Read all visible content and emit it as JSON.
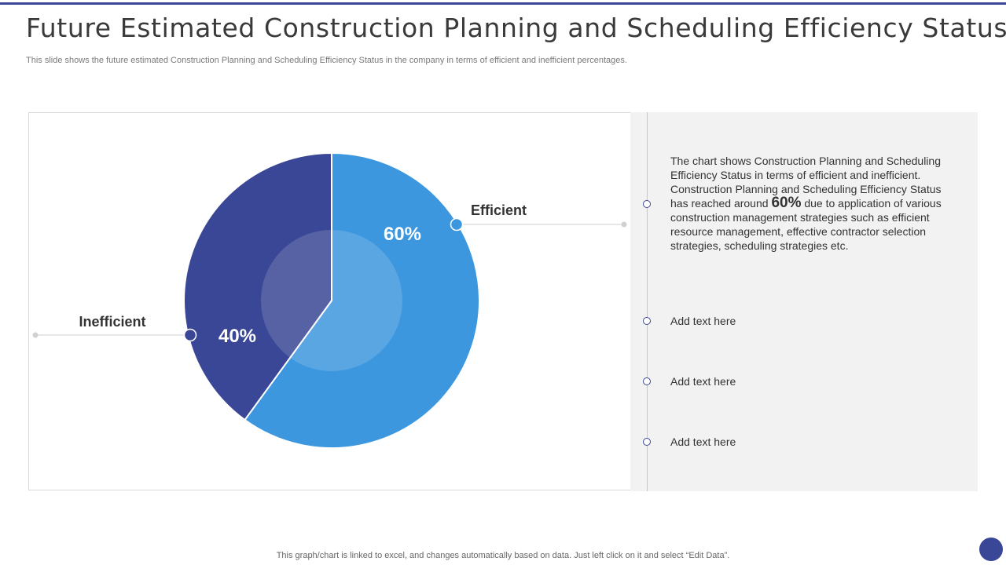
{
  "slide": {
    "title": "Future Estimated Construction Planning and Scheduling Efficiency Status",
    "subtitle": "This slide shows the future estimated Construction Planning and Scheduling Efficiency Status in the company in terms of efficient and inefficient percentages.",
    "footer": "This graph/chart is linked to excel,  and changes automatically based on data. Just left click on it and select “Edit Data”."
  },
  "chart_data": {
    "type": "pie",
    "slices": [
      {
        "label": "Efficient",
        "value": 60,
        "display": "60%",
        "color": "#3d97de"
      },
      {
        "label": "Inefficient",
        "value": 40,
        "display": "40%",
        "color": "#3a4796"
      }
    ]
  },
  "info": {
    "main_before": "The chart shows Construction Planning and Scheduling Efficiency Status in terms of efficient and inefficient. Construction Planning and Scheduling Efficiency Status has reached around",
    "main_highlight": "60%",
    "main_after": "due to application of various construction management strategies such as efficient resource management, effective contractor selection strategies, scheduling strategies etc.",
    "items": [
      "Add text here",
      "Add text here",
      "Add text here"
    ]
  },
  "colors": {
    "accent": "#3a4796",
    "efficient": "#3d97de",
    "inefficient": "#3a4796",
    "panel": "#f2f2f2"
  }
}
